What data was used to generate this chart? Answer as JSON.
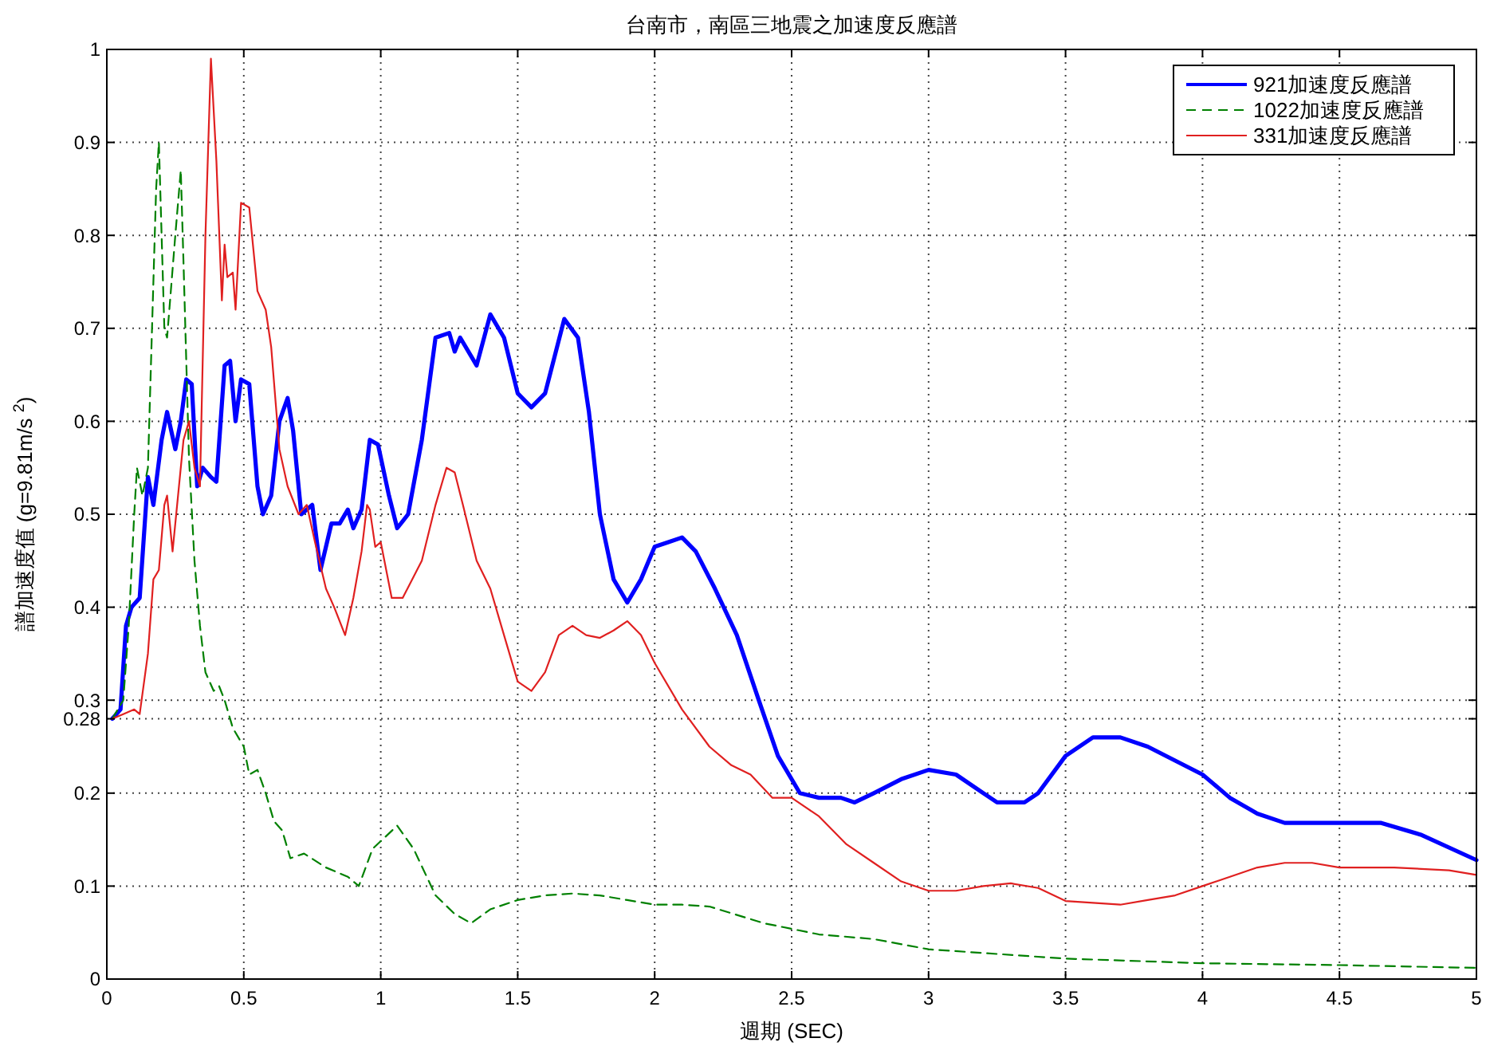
{
  "chart_data": {
    "type": "line",
    "title": "台南市，南區三地震之加速度反應譜",
    "xlabel": "週期 (SEC)",
    "ylabel": "譜加速度值 (g=9.81m/s $^{2}$)",
    "xlim": [
      0,
      5
    ],
    "xticks": [
      0,
      0.5,
      1,
      1.5,
      2,
      2.5,
      3,
      3.5,
      4,
      4.5,
      5
    ],
    "ylim": [
      0,
      1
    ],
    "yticks": [
      0,
      0.1,
      0.2,
      0.28,
      0.3,
      0.4,
      0.5,
      0.6,
      0.7,
      0.8,
      0.9,
      1
    ],
    "grid": true,
    "legend": "top right",
    "series": [
      {
        "name": "921加速度反應譜",
        "color": "#0000ff",
        "line_style": "solid",
        "x": [
          0.02,
          0.05,
          0.07,
          0.09,
          0.12,
          0.15,
          0.17,
          0.2,
          0.22,
          0.25,
          0.27,
          0.29,
          0.31,
          0.33,
          0.35,
          0.38,
          0.4,
          0.43,
          0.45,
          0.47,
          0.49,
          0.52,
          0.55,
          0.57,
          0.6,
          0.63,
          0.66,
          0.68,
          0.71,
          0.75,
          0.78,
          0.82,
          0.85,
          0.88,
          0.9,
          0.93,
          0.96,
          0.99,
          1.03,
          1.06,
          1.1,
          1.15,
          1.2,
          1.25,
          1.27,
          1.29,
          1.35,
          1.4,
          1.45,
          1.5,
          1.55,
          1.6,
          1.67,
          1.72,
          1.76,
          1.8,
          1.85,
          1.9,
          1.95,
          2.0,
          2.05,
          2.1,
          2.15,
          2.22,
          2.3,
          2.38,
          2.45,
          2.53,
          2.6,
          2.68,
          2.73,
          2.8,
          2.9,
          3.0,
          3.1,
          3.2,
          3.25,
          3.35,
          3.4,
          3.5,
          3.6,
          3.7,
          3.8,
          3.9,
          4.0,
          4.1,
          4.2,
          4.3,
          4.5,
          4.65,
          4.8,
          5.0
        ],
        "values": [
          0.28,
          0.29,
          0.38,
          0.4,
          0.41,
          0.54,
          0.51,
          0.58,
          0.61,
          0.57,
          0.6,
          0.645,
          0.64,
          0.53,
          0.55,
          0.54,
          0.535,
          0.66,
          0.665,
          0.6,
          0.645,
          0.64,
          0.53,
          0.5,
          0.52,
          0.6,
          0.625,
          0.59,
          0.5,
          0.51,
          0.44,
          0.49,
          0.49,
          0.505,
          0.485,
          0.505,
          0.58,
          0.575,
          0.52,
          0.485,
          0.5,
          0.58,
          0.69,
          0.695,
          0.675,
          0.69,
          0.66,
          0.715,
          0.69,
          0.63,
          0.615,
          0.63,
          0.71,
          0.69,
          0.61,
          0.5,
          0.43,
          0.405,
          0.43,
          0.465,
          0.47,
          0.475,
          0.46,
          0.42,
          0.37,
          0.3,
          0.24,
          0.2,
          0.195,
          0.195,
          0.19,
          0.2,
          0.215,
          0.225,
          0.22,
          0.2,
          0.19,
          0.19,
          0.2,
          0.24,
          0.26,
          0.26,
          0.25,
          0.235,
          0.22,
          0.195,
          0.178,
          0.168,
          0.168,
          0.168,
          0.155,
          0.128
        ]
      },
      {
        "name": "1022加速度反應譜",
        "color": "#008000",
        "line_style": "dashed",
        "x": [
          0.02,
          0.06,
          0.08,
          0.1,
          0.11,
          0.13,
          0.15,
          0.17,
          0.18,
          0.19,
          0.21,
          0.22,
          0.25,
          0.27,
          0.28,
          0.3,
          0.32,
          0.34,
          0.36,
          0.39,
          0.41,
          0.43,
          0.46,
          0.5,
          0.52,
          0.55,
          0.58,
          0.61,
          0.64,
          0.67,
          0.72,
          0.8,
          0.88,
          0.92,
          0.97,
          1.06,
          1.12,
          1.2,
          1.27,
          1.33,
          1.4,
          1.5,
          1.6,
          1.7,
          1.8,
          1.9,
          2.0,
          2.1,
          2.2,
          2.4,
          2.6,
          2.8,
          3.0,
          3.2,
          3.5,
          4.0,
          4.5,
          5.0
        ],
        "values": [
          0.28,
          0.3,
          0.38,
          0.5,
          0.55,
          0.52,
          0.55,
          0.75,
          0.85,
          0.9,
          0.7,
          0.69,
          0.8,
          0.87,
          0.77,
          0.56,
          0.45,
          0.38,
          0.33,
          0.31,
          0.315,
          0.3,
          0.27,
          0.25,
          0.22,
          0.225,
          0.2,
          0.17,
          0.16,
          0.13,
          0.135,
          0.12,
          0.11,
          0.1,
          0.14,
          0.165,
          0.14,
          0.09,
          0.07,
          0.06,
          0.075,
          0.085,
          0.09,
          0.092,
          0.09,
          0.085,
          0.08,
          0.08,
          0.078,
          0.06,
          0.048,
          0.043,
          0.032,
          0.028,
          0.022,
          0.017,
          0.015,
          0.012
        ]
      },
      {
        "name": "331加速度反應譜",
        "color": "#e02020",
        "line_style": "solid",
        "x": [
          0.02,
          0.06,
          0.1,
          0.12,
          0.15,
          0.17,
          0.19,
          0.21,
          0.22,
          0.23,
          0.24,
          0.26,
          0.28,
          0.3,
          0.32,
          0.34,
          0.36,
          0.38,
          0.4,
          0.42,
          0.43,
          0.44,
          0.46,
          0.47,
          0.49,
          0.52,
          0.55,
          0.58,
          0.6,
          0.63,
          0.66,
          0.7,
          0.73,
          0.76,
          0.8,
          0.83,
          0.87,
          0.9,
          0.93,
          0.95,
          0.96,
          0.98,
          1.0,
          1.04,
          1.08,
          1.15,
          1.2,
          1.24,
          1.27,
          1.3,
          1.35,
          1.4,
          1.45,
          1.5,
          1.55,
          1.6,
          1.65,
          1.7,
          1.75,
          1.8,
          1.85,
          1.9,
          1.95,
          2.0,
          2.1,
          2.2,
          2.28,
          2.35,
          2.43,
          2.5,
          2.6,
          2.7,
          2.8,
          2.9,
          3.0,
          3.1,
          3.2,
          3.3,
          3.4,
          3.5,
          3.6,
          3.7,
          3.8,
          3.9,
          4.0,
          4.1,
          4.2,
          4.3,
          4.4,
          4.5,
          4.7,
          4.9,
          5.0
        ],
        "values": [
          0.28,
          0.285,
          0.29,
          0.285,
          0.35,
          0.43,
          0.44,
          0.51,
          0.52,
          0.49,
          0.46,
          0.52,
          0.58,
          0.6,
          0.55,
          0.53,
          0.8,
          0.99,
          0.88,
          0.73,
          0.79,
          0.755,
          0.76,
          0.72,
          0.835,
          0.83,
          0.74,
          0.72,
          0.68,
          0.57,
          0.53,
          0.5,
          0.51,
          0.47,
          0.42,
          0.4,
          0.37,
          0.41,
          0.46,
          0.51,
          0.505,
          0.465,
          0.47,
          0.41,
          0.41,
          0.45,
          0.51,
          0.55,
          0.545,
          0.51,
          0.45,
          0.42,
          0.37,
          0.32,
          0.31,
          0.33,
          0.37,
          0.38,
          0.37,
          0.367,
          0.375,
          0.385,
          0.37,
          0.34,
          0.29,
          0.25,
          0.23,
          0.22,
          0.195,
          0.195,
          0.175,
          0.145,
          0.125,
          0.105,
          0.095,
          0.095,
          0.1,
          0.103,
          0.098,
          0.084,
          0.082,
          0.08,
          0.085,
          0.09,
          0.1,
          0.11,
          0.12,
          0.125,
          0.125,
          0.12,
          0.12,
          0.117,
          0.112
        ]
      }
    ]
  }
}
